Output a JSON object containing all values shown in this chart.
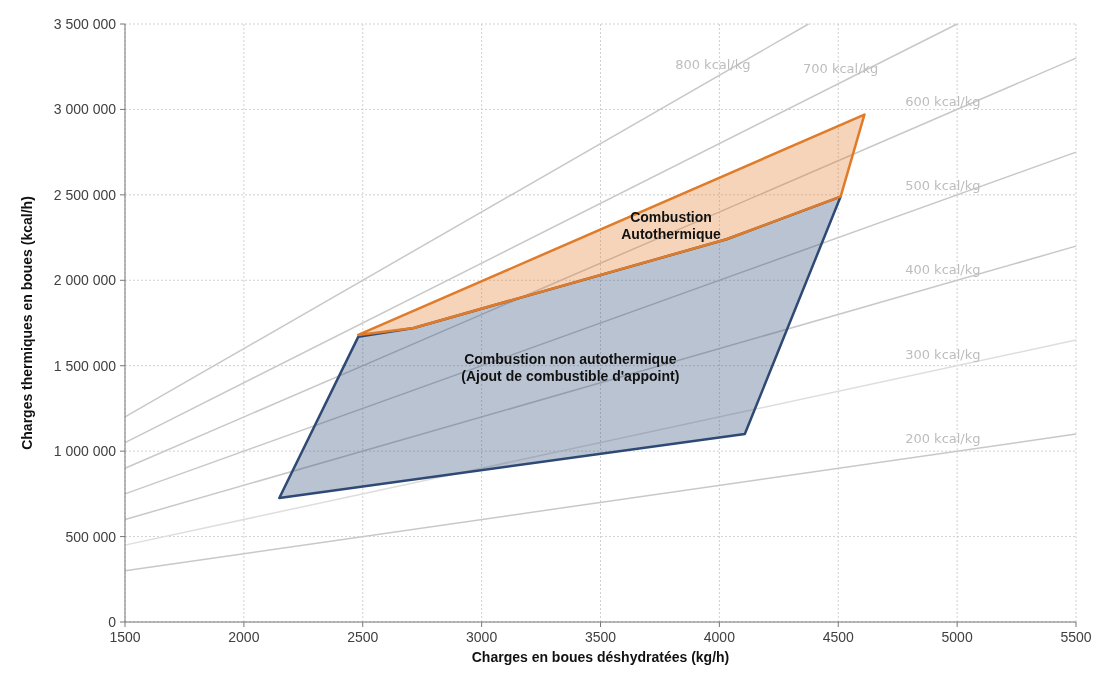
{
  "chart_data": {
    "type": "line",
    "xlabel": "Charges en boues déshydratées (kg/h)",
    "ylabel": "Charges thermiques en boues (kcal/h)",
    "xlim": [
      1500,
      5500
    ],
    "xticks": [
      1500,
      2000,
      2500,
      3000,
      3500,
      4000,
      4500,
      5000,
      5500
    ],
    "ylim": [
      0,
      3500000
    ],
    "yticks": [
      0,
      {
        "value": 500000,
        "label": "500 000"
      },
      {
        "value": 1000000,
        "label": "1 000 000"
      },
      {
        "value": 1500000,
        "label": "1 500 000"
      },
      {
        "value": 2000000,
        "label": "2 000 000"
      },
      {
        "value": 2500000,
        "label": "2 500 000"
      },
      {
        "value": 3000000,
        "label": "3 000 000"
      },
      {
        "value": 3500000,
        "label": "3 500 000"
      }
    ],
    "grid": true,
    "series": [
      {
        "name": "800 kcal/kg",
        "color": "#c8c8c8",
        "x": [
          1500,
          4375
        ],
        "values": [
          1200000,
          3500000
        ]
      },
      {
        "name": "700 kcal/kg",
        "color": "#c8c8c8",
        "x": [
          1500,
          5000
        ],
        "values": [
          1050000,
          3500000
        ]
      },
      {
        "name": "600 kcal/kg",
        "color": "#c8c8c8",
        "x": [
          1500,
          5500
        ],
        "values": [
          900000,
          3300000
        ]
      },
      {
        "name": "500 kcal/kg",
        "color": "#c8c8c8",
        "x": [
          1500,
          5500
        ],
        "values": [
          750000,
          2750000
        ]
      },
      {
        "name": "400 kcal/kg",
        "color": "#c8c8c8",
        "x": [
          1500,
          5500
        ],
        "values": [
          600000,
          2200000
        ]
      },
      {
        "name": "300 kcal/kg",
        "color": "#dedede",
        "x": [
          1500,
          5500
        ],
        "values": [
          450000,
          1650000
        ]
      },
      {
        "name": "200 kcal/kg",
        "color": "#c8c8c8",
        "x": [
          1500,
          5500
        ],
        "values": [
          300000,
          1100000
        ]
      },
      {
        "type": "area",
        "name": "Combustion non autothermique (Ajout de combustible d'appoint)",
        "color": "#2e4a74",
        "x": [
          2149,
          2481,
          2714,
          4030,
          4510,
          4107
        ],
        "values": [
          726000,
          1669000,
          1721000,
          2240000,
          2490000,
          1100000
        ]
      },
      {
        "type": "area",
        "name": "Combustion Autothermique",
        "color": "#e07b2a",
        "x": [
          2481,
          4610,
          4510,
          4030,
          2714
        ],
        "values": [
          1680000,
          2970000,
          2490000,
          2240000,
          1721000
        ]
      }
    ]
  }
}
